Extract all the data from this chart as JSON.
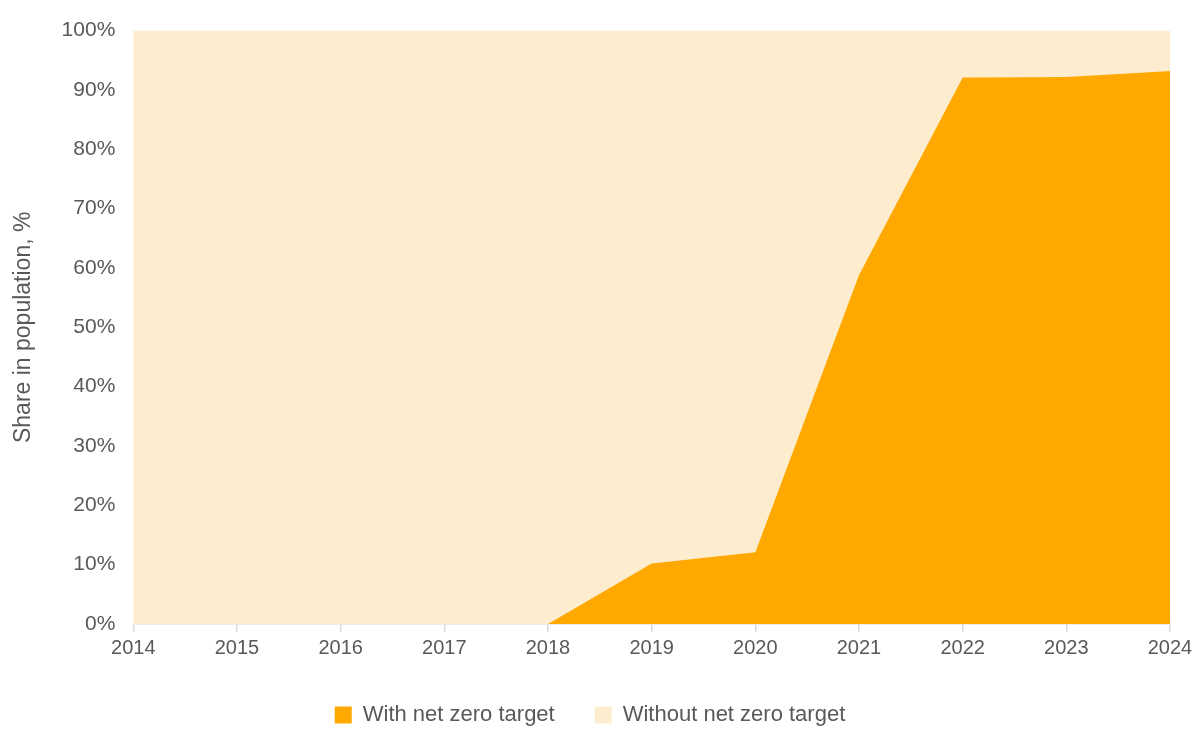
{
  "chart_data": {
    "type": "area",
    "ylabel": "Share in population, %",
    "categories": [
      "2014",
      "2015",
      "2016",
      "2017",
      "2018",
      "2019",
      "2020",
      "2021",
      "2022",
      "2023",
      "2024"
    ],
    "series": [
      {
        "name": "With net zero target",
        "color": "#ffa800",
        "values": [
          0,
          0,
          0,
          0,
          0,
          10.2,
          12.1,
          58.8,
          92.1,
          92.2,
          93.2
        ]
      },
      {
        "name": "Without net zero target",
        "color": "#fdecce",
        "values": [
          100,
          100,
          100,
          100,
          100,
          89.8,
          87.9,
          41.2,
          7.9,
          7.8,
          6.8
        ]
      }
    ],
    "stacked": true,
    "ylim": [
      0,
      100
    ],
    "yticks": [
      {
        "value": 0,
        "label": "0%"
      },
      {
        "value": 10,
        "label": "10%"
      },
      {
        "value": 20,
        "label": "20%"
      },
      {
        "value": 30,
        "label": "30%"
      },
      {
        "value": 40,
        "label": "40%"
      },
      {
        "value": 50,
        "label": "50%"
      },
      {
        "value": 60,
        "label": "60%"
      },
      {
        "value": 70,
        "label": "70%"
      },
      {
        "value": 80,
        "label": "80%"
      },
      {
        "value": 90,
        "label": "90%"
      },
      {
        "value": 100,
        "label": "100%"
      }
    ],
    "legend": "bottom"
  }
}
